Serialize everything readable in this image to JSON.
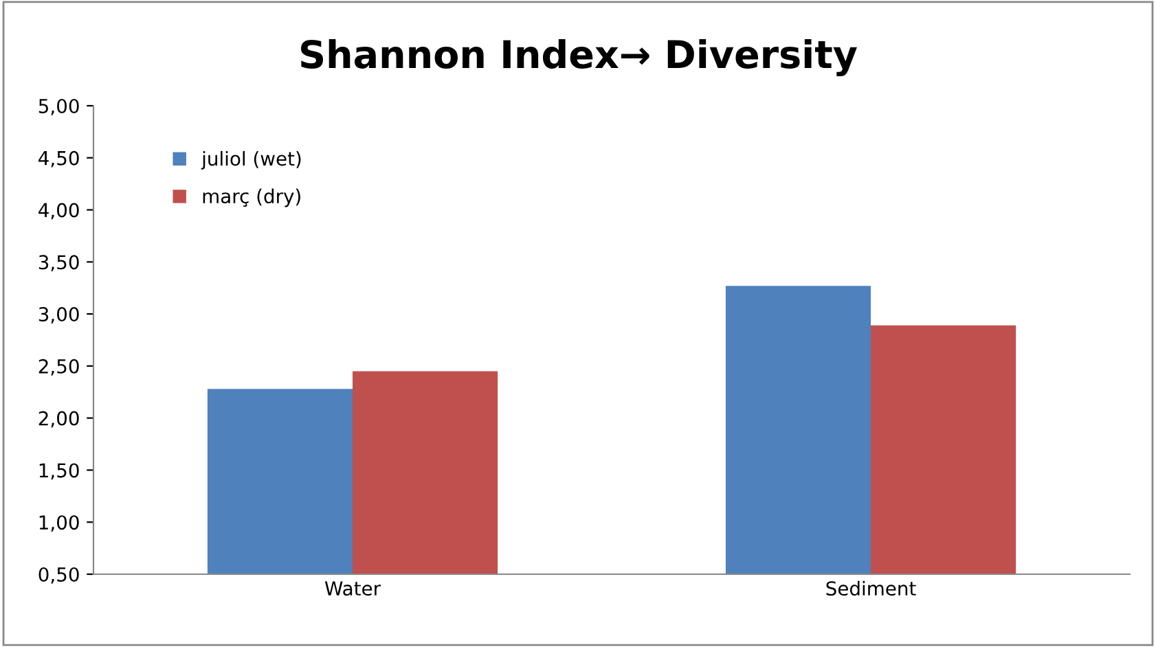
{
  "chart_data": {
    "type": "bar",
    "title": "Shannon Index→ Diversity",
    "categories": [
      "Water",
      "Sediment"
    ],
    "series": [
      {
        "name": "juliol (wet)",
        "color": "#4f81bd",
        "values": [
          2.28,
          3.27
        ]
      },
      {
        "name": "març (dry)",
        "color": "#c0504d",
        "values": [
          2.45,
          2.89
        ]
      }
    ],
    "ylim": [
      0.5,
      5.0
    ],
    "yticks": [
      {
        "value": 0.5,
        "label": "0,50"
      },
      {
        "value": 1.0,
        "label": "1,00"
      },
      {
        "value": 1.5,
        "label": "1,50"
      },
      {
        "value": 2.0,
        "label": "2,00"
      },
      {
        "value": 2.5,
        "label": "2,50"
      },
      {
        "value": 3.0,
        "label": "3,00"
      },
      {
        "value": 3.5,
        "label": "3,50"
      },
      {
        "value": 4.0,
        "label": "4,00"
      },
      {
        "value": 4.5,
        "label": "4,50"
      },
      {
        "value": 5.0,
        "label": "5,00"
      }
    ],
    "grid": false,
    "legend": "top left"
  }
}
